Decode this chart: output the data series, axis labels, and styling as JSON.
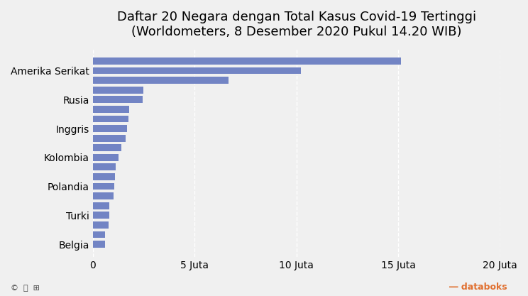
{
  "title": "Daftar 20 Negara dengan Total Kasus Covid-19 Tertinggi\n(Worldometers, 8 Desember 2020 Pukul 14.20 WIB)",
  "values": [
    15133700,
    10217635,
    6679306,
    2499739,
    2460770,
    1793085,
    1750241,
    1697011,
    1620456,
    1390265,
    1264169,
    1132513,
    1073136,
    1049773,
    1006582,
    824636,
    796899,
    762327,
    599974,
    587259
  ],
  "label_map": {
    "1": "Amerika Serikat",
    "4": "Rusia",
    "7": "Inggris",
    "10": "Kolombia",
    "13": "Polandia",
    "16": "Turki",
    "19": "Belgia"
  },
  "bar_color": "#7284C4",
  "background_color": "#f0f0f0",
  "xlim": [
    0,
    20000000
  ],
  "xticks": [
    0,
    5000000,
    10000000,
    15000000,
    20000000
  ],
  "xtick_labels": [
    "0",
    "5 Juta",
    "10 Juta",
    "15 Juta",
    "20 Juta"
  ],
  "title_fontsize": 13,
  "tick_fontsize": 10
}
